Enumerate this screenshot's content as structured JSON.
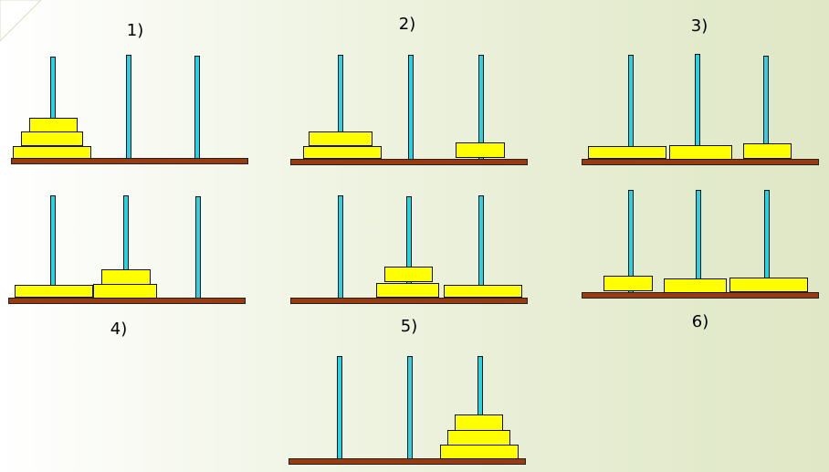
{
  "panels": [
    {
      "label": "1)"
    },
    {
      "label": "2)"
    },
    {
      "label": "3)"
    },
    {
      "label": "4)"
    },
    {
      "label": "5)"
    },
    {
      "label": "6)"
    },
    {
      "label": ""
    }
  ],
  "colors": {
    "disk": "#ffff00",
    "peg": "#22d4e6",
    "base": "#9a3a10"
  }
}
